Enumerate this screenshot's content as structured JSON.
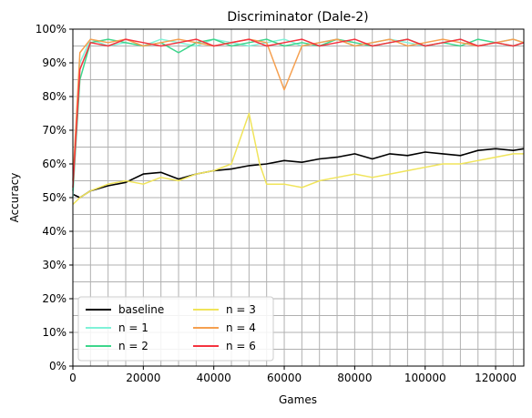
{
  "chart_data": {
    "type": "line",
    "title": "Discriminator (Dale-2)",
    "xlabel": "Games",
    "ylabel": "Accuracy",
    "xlim": [
      0,
      128000
    ],
    "ylim": [
      0,
      1.0
    ],
    "x_ticks": [
      0,
      20000,
      40000,
      60000,
      80000,
      100000,
      120000
    ],
    "x_tick_labels": [
      "0",
      "20000",
      "40000",
      "60000",
      "80000",
      "100000",
      "120000"
    ],
    "y_ticks": [
      0,
      0.1,
      0.2,
      0.3,
      0.4,
      0.5,
      0.6,
      0.7,
      0.8,
      0.9,
      1.0
    ],
    "y_tick_labels": [
      "0%",
      "10%",
      "20%",
      "30%",
      "40%",
      "50%",
      "60%",
      "70%",
      "80%",
      "90%",
      "100%"
    ],
    "grid": true,
    "legend_position": "lower-left",
    "series": [
      {
        "name": "baseline",
        "color": "#000000",
        "x": [
          0,
          2000,
          5000,
          10000,
          15000,
          20000,
          25000,
          30000,
          35000,
          40000,
          45000,
          50000,
          55000,
          60000,
          65000,
          70000,
          75000,
          80000,
          85000,
          90000,
          95000,
          100000,
          105000,
          110000,
          115000,
          120000,
          125000,
          128000
        ],
        "values": [
          0.51,
          0.5,
          0.52,
          0.535,
          0.545,
          0.57,
          0.575,
          0.555,
          0.57,
          0.58,
          0.585,
          0.595,
          0.6,
          0.61,
          0.605,
          0.615,
          0.62,
          0.63,
          0.615,
          0.63,
          0.625,
          0.635,
          0.63,
          0.625,
          0.64,
          0.645,
          0.64,
          0.645
        ]
      },
      {
        "name": "n = 1",
        "color": "#7ff2d8",
        "x": [
          0,
          2000,
          5000,
          10000,
          15000,
          20000,
          25000,
          30000,
          35000,
          40000,
          45000,
          50000,
          55000,
          60000,
          65000,
          70000,
          75000,
          80000,
          85000,
          90000,
          95000,
          100000,
          105000,
          110000,
          115000,
          120000,
          125000,
          128000
        ],
        "values": [
          0.5,
          0.9,
          0.97,
          0.95,
          0.96,
          0.95,
          0.97,
          0.96,
          0.95,
          0.97,
          0.96,
          0.95,
          0.96,
          0.97,
          0.95,
          0.96,
          0.97,
          0.95,
          0.96,
          0.97,
          0.96,
          0.95,
          0.96,
          0.97,
          0.95,
          0.96,
          0.97,
          0.96
        ]
      },
      {
        "name": "n = 2",
        "color": "#3dd68c",
        "x": [
          0,
          2000,
          5000,
          10000,
          15000,
          20000,
          25000,
          30000,
          35000,
          40000,
          45000,
          50000,
          55000,
          60000,
          65000,
          70000,
          75000,
          80000,
          85000,
          90000,
          95000,
          100000,
          105000,
          110000,
          115000,
          120000,
          125000,
          128000
        ],
        "values": [
          0.52,
          0.85,
          0.96,
          0.97,
          0.96,
          0.95,
          0.96,
          0.93,
          0.96,
          0.97,
          0.95,
          0.96,
          0.97,
          0.95,
          0.96,
          0.95,
          0.97,
          0.96,
          0.95,
          0.96,
          0.97,
          0.95,
          0.96,
          0.95,
          0.97,
          0.96,
          0.95,
          0.96
        ]
      },
      {
        "name": "n = 3",
        "color": "#f0e45a",
        "x": [
          0,
          2000,
          5000,
          10000,
          15000,
          20000,
          25000,
          30000,
          35000,
          40000,
          45000,
          50000,
          53000,
          55000,
          60000,
          65000,
          70000,
          75000,
          80000,
          85000,
          90000,
          95000,
          100000,
          105000,
          110000,
          115000,
          120000,
          125000,
          128000
        ],
        "values": [
          0.48,
          0.5,
          0.52,
          0.54,
          0.55,
          0.54,
          0.56,
          0.55,
          0.57,
          0.58,
          0.6,
          0.75,
          0.6,
          0.54,
          0.54,
          0.53,
          0.55,
          0.56,
          0.57,
          0.56,
          0.57,
          0.58,
          0.59,
          0.6,
          0.6,
          0.61,
          0.62,
          0.63,
          0.63
        ]
      },
      {
        "name": "n = 4",
        "color": "#f5a050",
        "x": [
          0,
          2000,
          5000,
          10000,
          15000,
          20000,
          25000,
          30000,
          35000,
          40000,
          45000,
          50000,
          55000,
          60000,
          65000,
          70000,
          75000,
          80000,
          85000,
          90000,
          95000,
          100000,
          105000,
          110000,
          115000,
          120000,
          125000,
          128000
        ],
        "values": [
          0.55,
          0.93,
          0.97,
          0.96,
          0.97,
          0.95,
          0.96,
          0.97,
          0.96,
          0.95,
          0.96,
          0.97,
          0.96,
          0.82,
          0.95,
          0.96,
          0.97,
          0.95,
          0.96,
          0.97,
          0.95,
          0.96,
          0.97,
          0.96,
          0.95,
          0.96,
          0.97,
          0.96
        ]
      },
      {
        "name": "n = 6",
        "color": "#f5333f",
        "x": [
          0,
          2000,
          5000,
          10000,
          15000,
          20000,
          25000,
          30000,
          35000,
          40000,
          45000,
          50000,
          55000,
          60000,
          65000,
          70000,
          75000,
          80000,
          85000,
          90000,
          95000,
          100000,
          105000,
          110000,
          115000,
          120000,
          125000,
          128000
        ],
        "values": [
          0.53,
          0.88,
          0.96,
          0.95,
          0.97,
          0.96,
          0.95,
          0.96,
          0.97,
          0.95,
          0.96,
          0.97,
          0.95,
          0.96,
          0.97,
          0.95,
          0.96,
          0.97,
          0.95,
          0.96,
          0.97,
          0.95,
          0.96,
          0.97,
          0.95,
          0.96,
          0.95,
          0.96
        ]
      }
    ]
  }
}
